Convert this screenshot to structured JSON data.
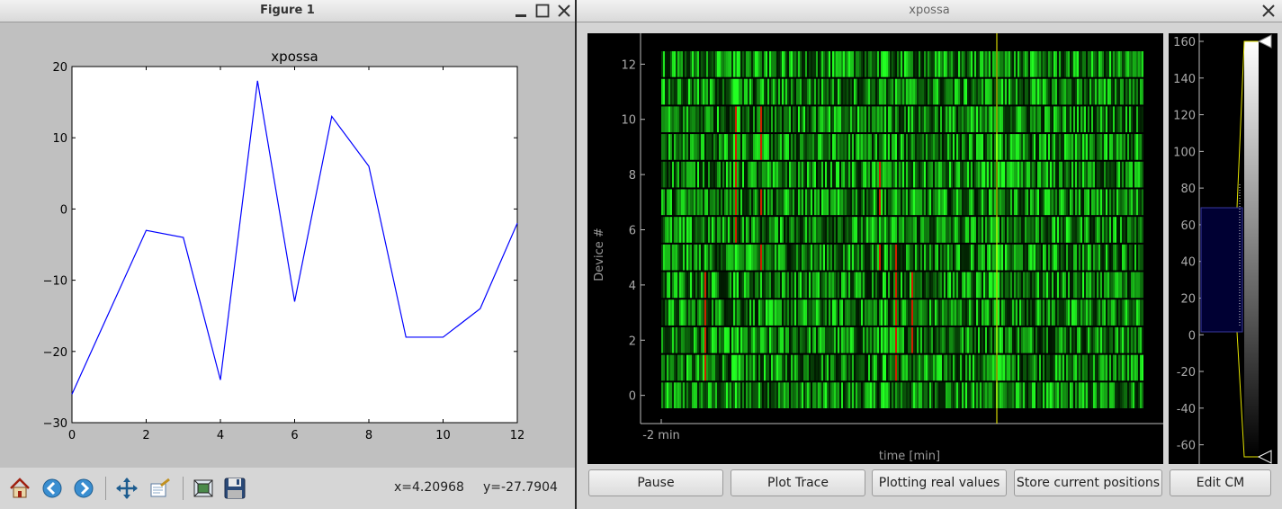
{
  "figure_window": {
    "title": "Figure 1",
    "toolbar": {
      "coord_x": "x=4.20968",
      "coord_y": "y=-27.7904"
    }
  },
  "xpossa_window": {
    "title": "xpossa",
    "buttons": {
      "pause": "Pause",
      "plot_trace": "Plot Trace",
      "plotting_real": "Plotting real values",
      "store_positions": "Store current positions",
      "edit_cm": "Edit CM"
    }
  },
  "colors": {
    "line": "#0000ff",
    "cursor": "#ffff00",
    "heatmap_low": "#001400",
    "heatmap_high": "#22ff22",
    "heatmap_hot": "#d01e00"
  },
  "chart_data": [
    {
      "type": "line",
      "title": "xpossa",
      "xlabel": "",
      "ylabel": "",
      "xlim": [
        0,
        12
      ],
      "ylim": [
        -30,
        20
      ],
      "x_ticks": [
        "0",
        "2",
        "4",
        "6",
        "8",
        "10",
        "12"
      ],
      "y_ticks": [
        "20",
        "10",
        "0",
        "−10",
        "−20",
        "−30"
      ],
      "x": [
        0,
        1,
        2,
        3,
        4,
        5,
        6,
        7,
        8,
        9,
        10,
        11,
        12
      ],
      "values": [
        -26,
        -14.5,
        -3,
        -4,
        -24,
        18,
        -13,
        13,
        6,
        -18,
        -18,
        -14,
        -2
      ],
      "grid": false
    },
    {
      "type": "heatmap",
      "title": "",
      "xlabel": "time [min]",
      "ylabel": "Device #",
      "x_ticks": [
        "-2 min"
      ],
      "y_ticks": [
        "0",
        "2",
        "4",
        "6",
        "8",
        "10",
        "12"
      ],
      "ylim": [
        0,
        13
      ],
      "colorbar_ticks": [
        "160",
        "140",
        "120",
        "100",
        "80",
        "60",
        "40",
        "20",
        "0",
        "-20",
        "-40",
        "-60"
      ],
      "colorbar_range": [
        -70,
        160
      ]
    }
  ]
}
